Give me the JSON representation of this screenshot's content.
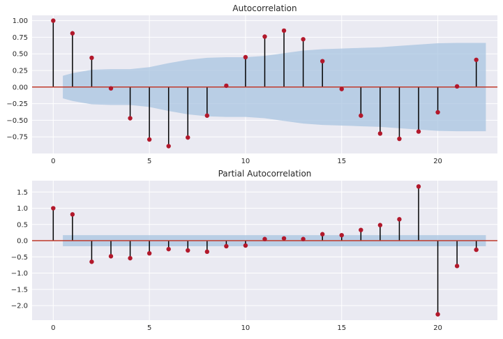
{
  "chart_data": [
    {
      "type": "stem",
      "title": "Autocorrelation",
      "xlabel": "",
      "ylabel": "",
      "xlim": [
        -1.1,
        23.1
      ],
      "ylim": [
        -1.0,
        1.08
      ],
      "xticks": [
        0,
        5,
        10,
        15,
        20
      ],
      "xtick_labels": [
        "0",
        "5",
        "10",
        "15",
        "20"
      ],
      "yticks": [
        1.0,
        0.75,
        0.5,
        0.25,
        0.0,
        -0.25,
        -0.5,
        -0.75
      ],
      "ytick_labels": [
        "1.00",
        "0.75",
        "0.50",
        "0.25",
        "0.00",
        "−0.25",
        "−0.50",
        "−0.75"
      ],
      "grid": true,
      "lags": [
        0,
        1,
        2,
        3,
        4,
        5,
        6,
        7,
        8,
        9,
        10,
        11,
        12,
        13,
        14,
        15,
        16,
        17,
        18,
        19,
        20,
        21,
        22
      ],
      "values": [
        1.0,
        0.81,
        0.44,
        -0.02,
        -0.47,
        -0.79,
        -0.89,
        -0.76,
        -0.43,
        0.02,
        0.45,
        0.76,
        0.85,
        0.72,
        0.39,
        -0.03,
        -0.43,
        -0.7,
        -0.78,
        -0.67,
        -0.38,
        0.01,
        0.41
      ],
      "confidence_band": {
        "lags": [
          0.5,
          1,
          2,
          3,
          4,
          5,
          6,
          7,
          8,
          9,
          10,
          11,
          12,
          13,
          14,
          15,
          16,
          17,
          18,
          19,
          20,
          21,
          22,
          22.5
        ],
        "upper": [
          0.17,
          0.21,
          0.26,
          0.27,
          0.27,
          0.3,
          0.36,
          0.41,
          0.44,
          0.45,
          0.45,
          0.47,
          0.51,
          0.55,
          0.57,
          0.58,
          0.59,
          0.6,
          0.62,
          0.64,
          0.66,
          0.665,
          0.665,
          0.665
        ]
      },
      "colors": {
        "marker": "#b2182b",
        "stem": "#000000",
        "baseline": "#c0392b",
        "band": "#a8c4e0"
      }
    },
    {
      "type": "stem",
      "title": "Partial Autocorrelation",
      "xlabel": "",
      "ylabel": "",
      "xlim": [
        -1.1,
        23.1
      ],
      "ylim": [
        -2.45,
        1.85
      ],
      "xticks": [
        0,
        5,
        10,
        15,
        20
      ],
      "xtick_labels": [
        "0",
        "5",
        "10",
        "15",
        "20"
      ],
      "yticks": [
        1.5,
        1.0,
        0.5,
        0.0,
        -0.5,
        -1.0,
        -1.5,
        -2.0
      ],
      "ytick_labels": [
        "1.5",
        "1.0",
        "0.5",
        "0.0",
        "−0.5",
        "−1.0",
        "−1.5",
        "−2.0"
      ],
      "grid": true,
      "lags": [
        0,
        1,
        2,
        3,
        4,
        5,
        6,
        7,
        8,
        9,
        10,
        11,
        12,
        13,
        14,
        15,
        16,
        17,
        18,
        19,
        20,
        21,
        22
      ],
      "values": [
        1.0,
        0.81,
        -0.65,
        -0.48,
        -0.54,
        -0.39,
        -0.26,
        -0.3,
        -0.34,
        -0.17,
        -0.15,
        0.05,
        0.07,
        0.05,
        0.2,
        0.17,
        0.33,
        0.48,
        0.66,
        1.67,
        -2.27,
        -0.78,
        -0.28
      ],
      "confidence_band": {
        "lags": [
          0.5,
          22.5
        ],
        "upper": [
          0.17,
          0.17
        ]
      },
      "colors": {
        "marker": "#b2182b",
        "stem": "#000000",
        "baseline": "#c0392b",
        "band": "#a8c4e0"
      }
    }
  ]
}
